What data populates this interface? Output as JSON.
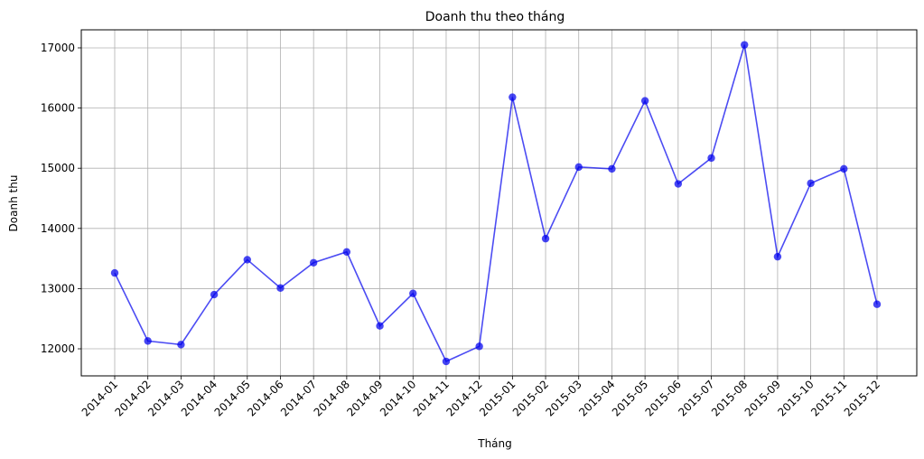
{
  "chart_data": {
    "type": "line",
    "title": "Doanh thu theo tháng",
    "xlabel": "Tháng",
    "ylabel": "Doanh thu",
    "categories": [
      "2014-01",
      "2014-02",
      "2014-03",
      "2014-04",
      "2014-05",
      "2014-06",
      "2014-07",
      "2014-08",
      "2014-09",
      "2014-10",
      "2014-11",
      "2014-12",
      "2015-01",
      "2015-02",
      "2015-03",
      "2015-04",
      "2015-05",
      "2015-06",
      "2015-07",
      "2015-08",
      "2015-09",
      "2015-10",
      "2015-11",
      "2015-12"
    ],
    "values": [
      13260,
      12130,
      12070,
      12900,
      13480,
      13010,
      13430,
      13610,
      12380,
      12920,
      11790,
      12040,
      16180,
      13830,
      15020,
      14990,
      16120,
      14740,
      15170,
      17050,
      13530,
      14750,
      14990,
      12740
    ],
    "yticks": [
      12000,
      13000,
      14000,
      15000,
      16000,
      17000
    ],
    "ylim": [
      11550,
      17300
    ],
    "grid": true,
    "marker": "circle",
    "color": "#0000ee"
  }
}
